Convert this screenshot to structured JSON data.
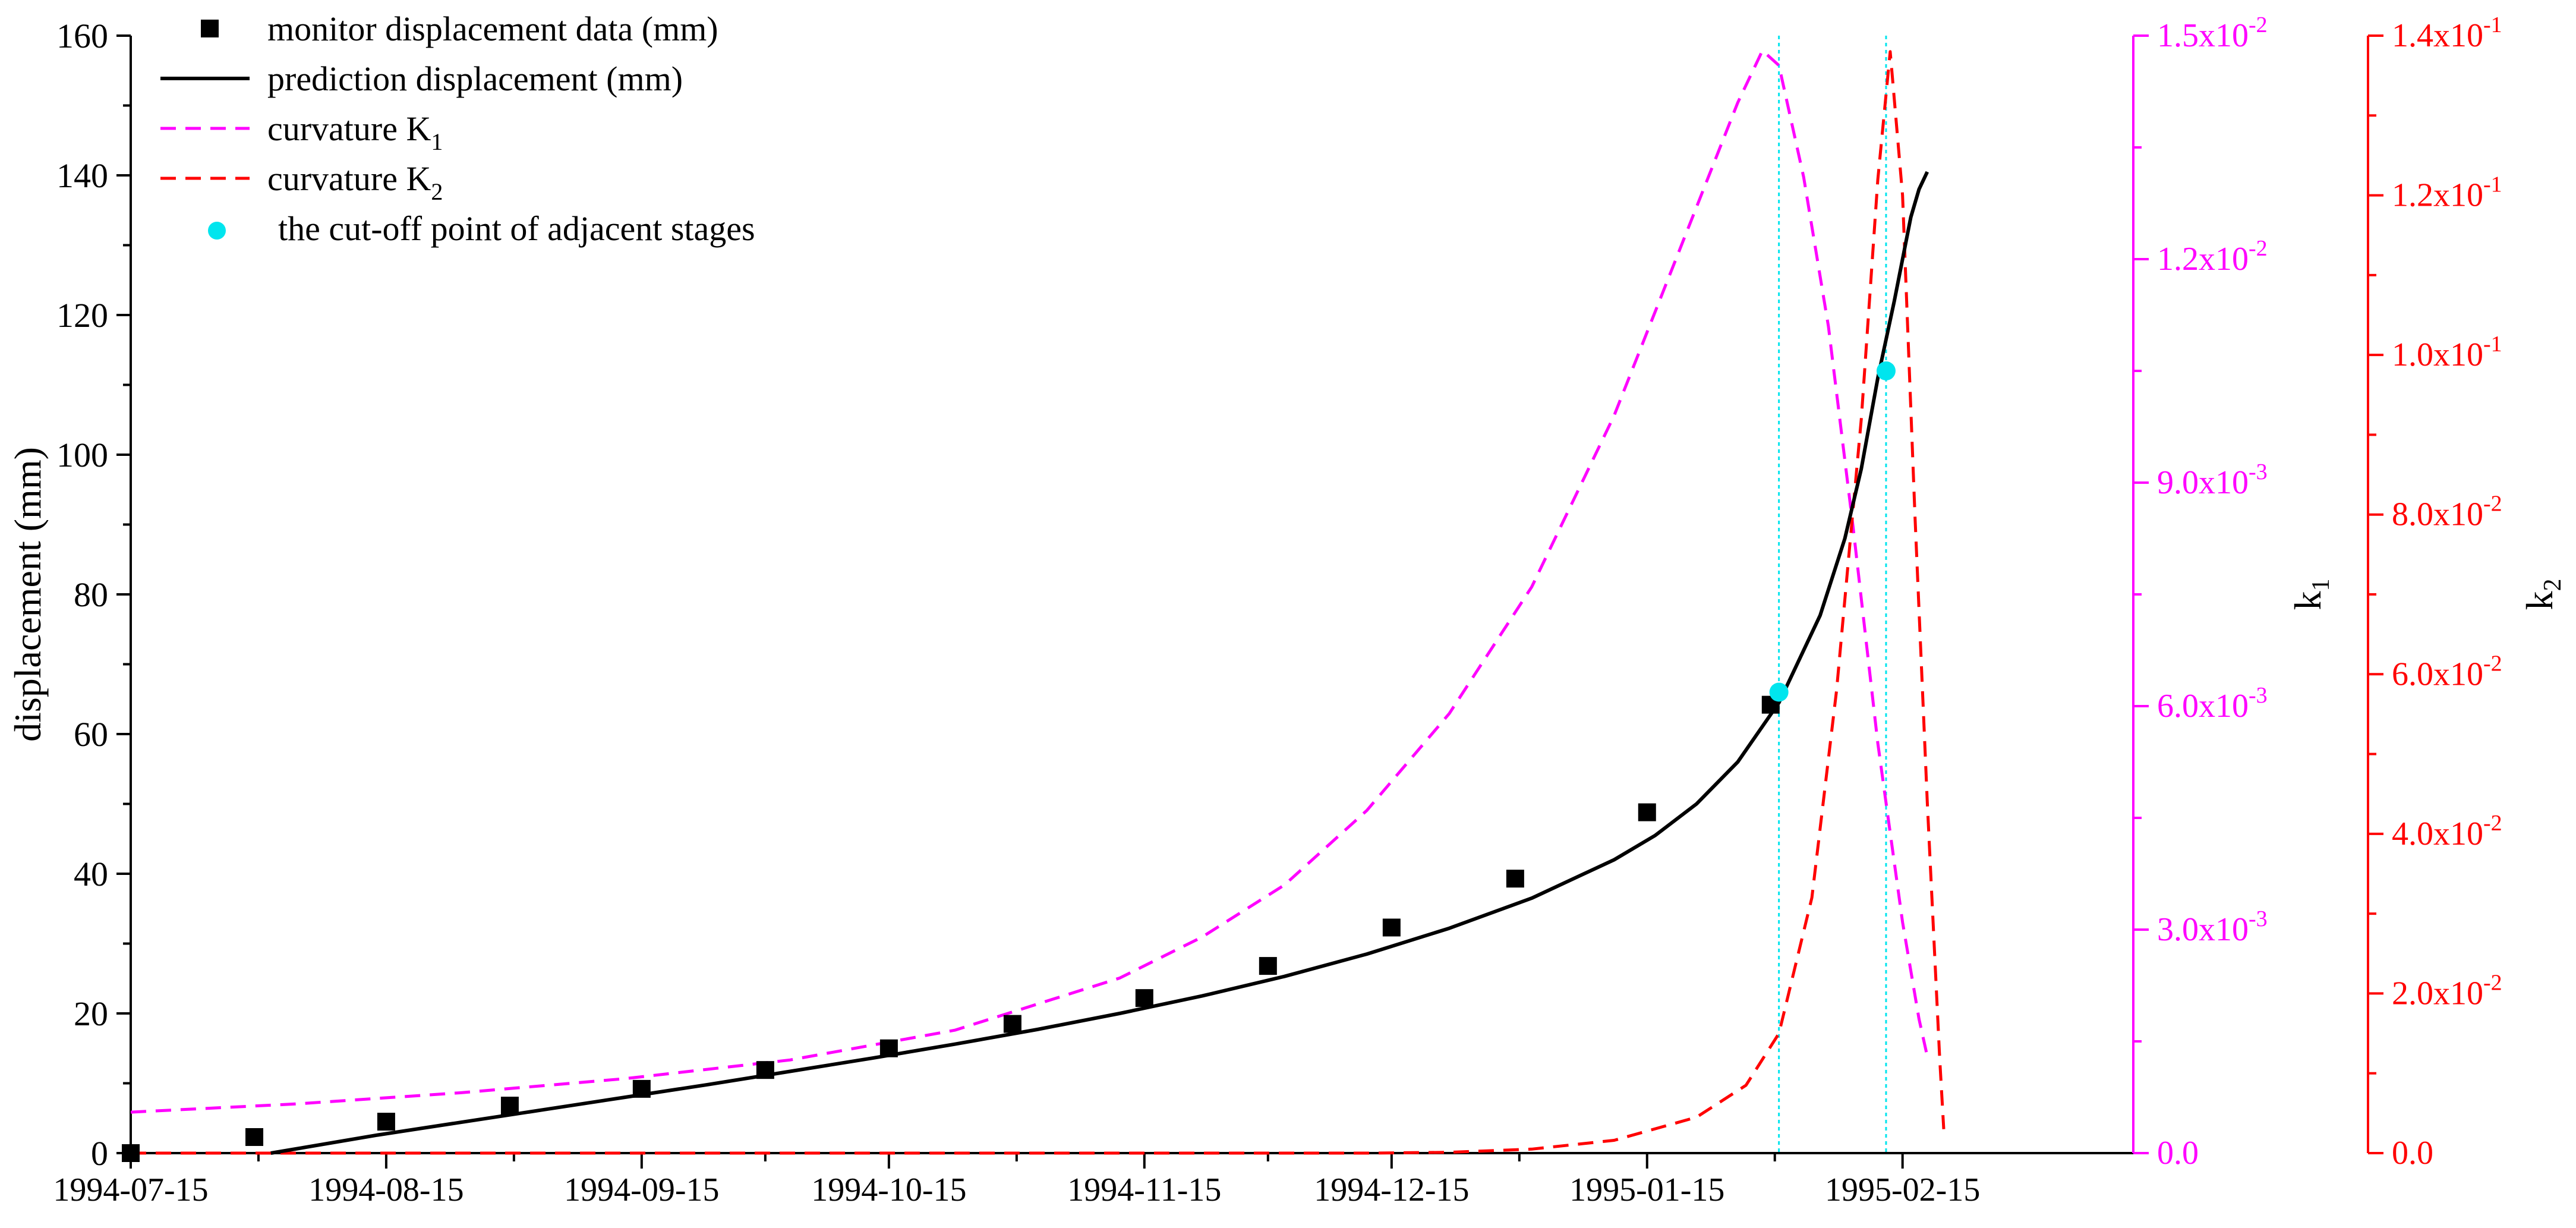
{
  "chart_data": {
    "type": "line",
    "title": "",
    "x_axis": {
      "label": "",
      "start": "1994-07-15",
      "end": "1995-03-15",
      "ticks": [
        "1994-07-15",
        "1994-08-15",
        "1994-09-15",
        "1994-10-15",
        "1994-11-15",
        "1994-12-15",
        "1995-01-15",
        "1995-02-15"
      ],
      "tick_days": [
        0,
        31,
        62,
        92,
        123,
        153,
        184,
        215
      ],
      "range_days": [
        0,
        243
      ]
    },
    "y_left": {
      "label": "displacement (mm)",
      "range": [
        0,
        160
      ],
      "ticks": [
        0,
        20,
        40,
        60,
        80,
        100,
        120,
        140,
        160
      ],
      "color": "#000000"
    },
    "y_k1": {
      "label_base": "k",
      "label_sub": "1",
      "range": [
        0,
        0.015
      ],
      "ticks": [
        0,
        0.003,
        0.006,
        0.009,
        0.012,
        0.015
      ],
      "tick_labels": [
        {
          "mant": "0.0",
          "exp": ""
        },
        {
          "mant": "3.0x10",
          "exp": "-3"
        },
        {
          "mant": "6.0x10",
          "exp": "-3"
        },
        {
          "mant": "9.0x10",
          "exp": "-3"
        },
        {
          "mant": "1.2x10",
          "exp": "-2"
        },
        {
          "mant": "1.5x10",
          "exp": "-2"
        }
      ],
      "color": "#ff00ff"
    },
    "y_k2": {
      "label_base": "k",
      "label_sub": "2",
      "range": [
        0,
        0.14
      ],
      "ticks": [
        0,
        0.02,
        0.04,
        0.06,
        0.08,
        0.1,
        0.12,
        0.14
      ],
      "tick_labels": [
        {
          "mant": "0.0",
          "exp": ""
        },
        {
          "mant": "2.0x10",
          "exp": "-2"
        },
        {
          "mant": "4.0x10",
          "exp": "-2"
        },
        {
          "mant": "6.0x10",
          "exp": "-2"
        },
        {
          "mant": "8.0x10",
          "exp": "-2"
        },
        {
          "mant": "1.0x10",
          "exp": "-1"
        },
        {
          "mant": "1.2x10",
          "exp": "-1"
        },
        {
          "mant": "1.4x10",
          "exp": "-1"
        }
      ],
      "color": "#ff0000"
    },
    "legend": {
      "placement": "top-left",
      "entries": [
        {
          "key": "monitor",
          "text": "monitor displacement data (mm)",
          "sub": ""
        },
        {
          "key": "prediction",
          "text": "prediction displacement (mm)",
          "sub": ""
        },
        {
          "key": "k1",
          "text": "curvature K",
          "sub": "1"
        },
        {
          "key": "k2",
          "text": "curvature K",
          "sub": "2"
        },
        {
          "key": "cutoff",
          "text": "the cut-off point of adjacent stages",
          "sub": ""
        }
      ]
    },
    "series": [
      {
        "key": "monitor",
        "name": "monitor displacement data (mm)",
        "kind": "scatter-square",
        "axis": "left",
        "color": "#000000",
        "x": [
          0,
          15,
          31,
          46,
          62,
          77,
          92,
          107,
          123,
          138,
          153,
          168,
          184,
          199
        ],
        "y": [
          0,
          2.3,
          4.5,
          6.8,
          9.2,
          11.9,
          15.0,
          18.5,
          22.2,
          26.8,
          32.3,
          39.3,
          48.8,
          64.2
        ]
      },
      {
        "key": "prediction",
        "name": "prediction displacement (mm)",
        "kind": "line",
        "axis": "left",
        "color": "#000000",
        "x": [
          17,
          20,
          30,
          40,
          50,
          60,
          70,
          80,
          90,
          100,
          110,
          120,
          130,
          140,
          150,
          160,
          170,
          180,
          185,
          190,
          195,
          200,
          205,
          208,
          210,
          212,
          214,
          215,
          216,
          217,
          218
        ],
        "y": [
          0,
          0.6,
          2.6,
          4.4,
          6.2,
          8.0,
          9.8,
          11.7,
          13.6,
          15.6,
          17.7,
          20.0,
          22.5,
          25.3,
          28.5,
          32.2,
          36.5,
          42.0,
          45.5,
          50.0,
          56.0,
          64.5,
          77.0,
          88.0,
          98.0,
          111.0,
          122.0,
          128.0,
          134.0,
          138.0,
          140.5
        ]
      },
      {
        "key": "k1",
        "name": "curvature K1",
        "kind": "dashed-line",
        "axis": "k1",
        "color": "#ff00ff",
        "x": [
          0,
          20,
          40,
          60,
          80,
          100,
          120,
          130,
          140,
          150,
          160,
          170,
          180,
          190,
          195,
          198,
          200,
          203,
          206,
          209,
          212,
          215,
          217,
          218
        ],
        "y": [
          0.00055,
          0.00066,
          0.00081,
          0.001,
          0.00125,
          0.00165,
          0.00235,
          0.0029,
          0.0036,
          0.0046,
          0.0059,
          0.0076,
          0.0099,
          0.0127,
          0.0141,
          0.0148,
          0.0146,
          0.0131,
          0.0111,
          0.0084,
          0.0055,
          0.0031,
          0.0018,
          0.0013
        ]
      },
      {
        "key": "k2",
        "name": "curvature K2",
        "kind": "dashed-line",
        "axis": "k2",
        "color": "#ff0000",
        "x": [
          0,
          60,
          120,
          150,
          160,
          170,
          180,
          190,
          196,
          200,
          204,
          207,
          210,
          212,
          213.5,
          215,
          216.5,
          218,
          219.5,
          220
        ],
        "y": [
          0,
          0,
          0,
          0,
          0.0001,
          0.0005,
          0.0016,
          0.0045,
          0.0085,
          0.015,
          0.032,
          0.058,
          0.092,
          0.122,
          0.138,
          0.12,
          0.08,
          0.044,
          0.012,
          0.003
        ]
      }
    ],
    "cutoff_points": {
      "name": "the cut-off point of adjacent stages",
      "color": "#00e5ee",
      "axis": "left",
      "x": [
        200,
        213
      ],
      "y": [
        66,
        112
      ]
    }
  }
}
